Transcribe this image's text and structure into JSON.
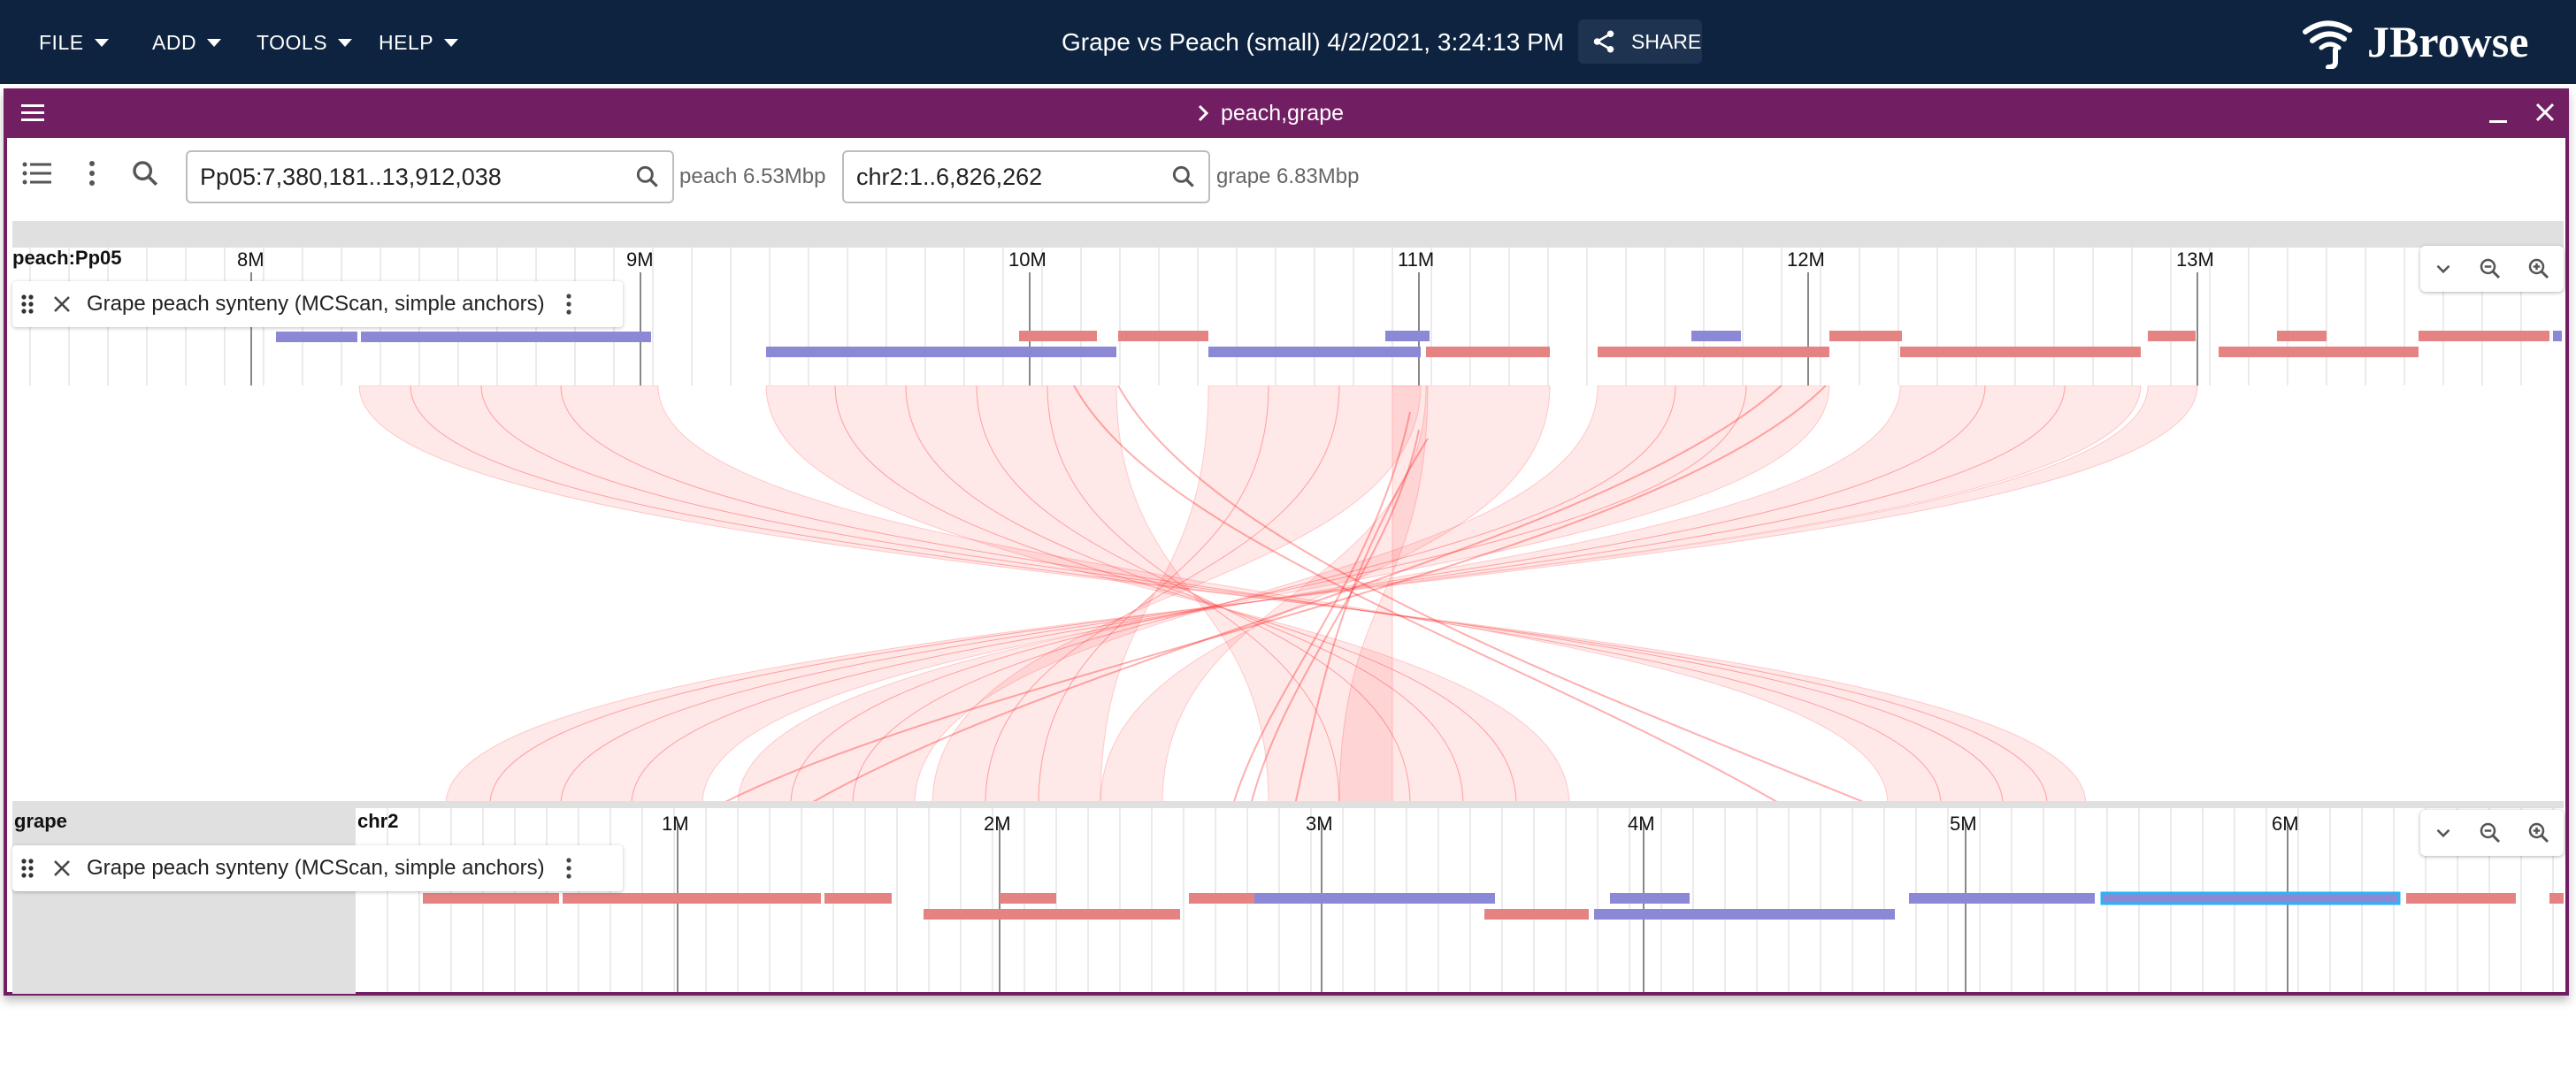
{
  "app_menu": {
    "file": "FILE",
    "add": "ADD",
    "tools": "TOOLS",
    "help": "HELP"
  },
  "session_title": "Grape vs Peach (small) 4/2/2021, 3:24:13 PM",
  "share_label": "SHARE",
  "brand_name": "JBrowse",
  "view": {
    "title": "peach,grape",
    "accent_color": "#721e63"
  },
  "top_assembly": {
    "location": "Pp05:7,380,181..13,912,038",
    "size_label": "peach 6.53Mbp",
    "ref_label": "peach:Pp05",
    "ticks": [
      "8M",
      "9M",
      "10M",
      "11M",
      "12M",
      "13M"
    ]
  },
  "bottom_assembly": {
    "location": "chr2:1..6,826,262",
    "size_label": "grape 6.83Mbp",
    "assembly_label": "grape",
    "ref_label": "chr2",
    "ticks": [
      "1M",
      "2M",
      "3M",
      "4M",
      "5M",
      "6M"
    ]
  },
  "tracks": {
    "top_track_name": "Grape peach synteny (MCScan, simple anchors)",
    "bottom_track_name": "Grape peach synteny (MCScan, simple anchors)"
  },
  "colors": {
    "appbar": "#0d233f",
    "forward_feature": "#e58383",
    "reverse_feature": "#8b89d6",
    "synteny": "#ff4d4d",
    "selected_outline": "#29b6f6"
  }
}
